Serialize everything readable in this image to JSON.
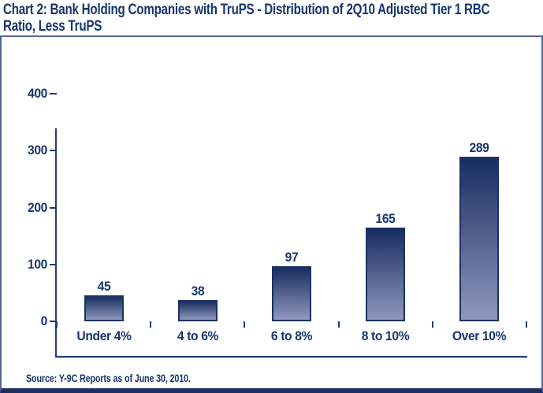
{
  "page": {
    "title": "Chart 2: Bank Holding Companies with TruPS -  Distribution of 2Q10 Adjusted Tier 1 RBC Ratio, Less TruPS",
    "source": "Source: Y-9C Reports as of June 30, 2010."
  },
  "colors": {
    "navy_text": "#17356E",
    "axis_line": "#203C74",
    "bar_gradient_top": "#182E60",
    "bar_gradient_bottom": "#8F97BD",
    "bar_border": "#1C3263",
    "box_border": "#55659B",
    "box_border_bottom": "#1B2F62",
    "background": "#FFFFFF"
  },
  "chart_data": {
    "type": "bar",
    "title": "Chart 2: Bank Holding Companies with TruPS - Distribution of 2Q10 Adjusted Tier 1 RBC Ratio, Less TruPS",
    "categories": [
      "Under 4%",
      "4 to 6%",
      "6 to 8%",
      "8 to 10%",
      "Over 10%"
    ],
    "values": [
      45,
      38,
      97,
      165,
      289
    ],
    "data_labels": [
      45,
      38,
      97,
      165,
      289
    ],
    "xlabel": "",
    "ylabel": "",
    "ylim": [
      0,
      400
    ],
    "yticks": [
      0,
      100,
      200,
      300,
      400
    ],
    "grid": false,
    "legend": "none",
    "bar_style": "vertical gradient dark-navy to light-slate, thin navy outline",
    "source_note": "Source: Y-9C Reports as of June 30, 2010."
  }
}
